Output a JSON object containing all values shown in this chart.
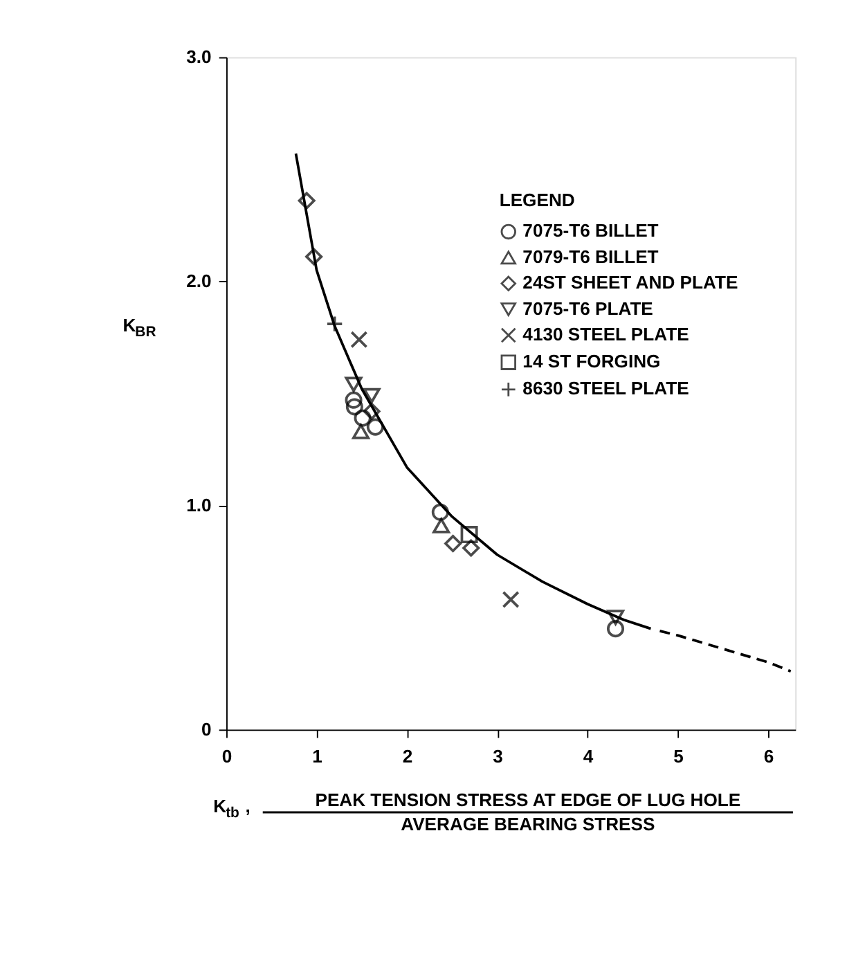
{
  "chart_data": {
    "type": "scatter",
    "xlabel": "K$_{tb}$, PEAK TENSION STRESS AT EDGE OF LUG HOLE",
    "annotations": [
      "AVERAGE BEARING STRESS"
    ],
    "ylabel": "K$_{BR}$",
    "legend_title": "LEGEND",
    "legend": "top right",
    "grid": false,
    "xlim": [
      0,
      6.3
    ],
    "xticks": [
      0,
      1,
      2,
      3,
      4,
      5,
      6
    ],
    "ylim": [
      0,
      3
    ],
    "yticks": [
      0,
      {
        "value": 1,
        "label": "1.0"
      },
      {
        "value": 2,
        "label": "2.0"
      },
      {
        "value": 3,
        "label": "3.0"
      }
    ],
    "series": [
      {
        "name": "7075-T6 BILLET",
        "color": "#000000",
        "marker": "circle",
        "x": [
          1.41,
          1.42,
          1.51,
          1.65,
          2.37,
          4.31
        ],
        "values": [
          1.47,
          1.44,
          1.39,
          1.35,
          0.97,
          0.45
        ]
      },
      {
        "name": "7079-T6 BILLET",
        "color": "#000000",
        "marker": "triangle",
        "x": [
          1.49,
          2.38
        ],
        "values": [
          1.33,
          0.91
        ]
      },
      {
        "name": "24ST SHEET AND PLATE",
        "color": "#000000",
        "marker": "diamond",
        "x": [
          0.89,
          0.97,
          1.61,
          2.51,
          2.71
        ],
        "values": [
          2.36,
          2.11,
          1.42,
          0.83,
          0.81
        ]
      },
      {
        "name": "7075-T6 PLATE",
        "color": "#000000",
        "marker": "triangle-down",
        "x": [
          1.41,
          1.61,
          4.31
        ],
        "values": [
          1.54,
          1.49,
          0.5
        ]
      },
      {
        "name": "4130 STEEL PLATE",
        "color": "#000000",
        "marker": "x",
        "x": [
          1.47,
          3.15
        ],
        "values": [
          1.74,
          0.58
        ]
      },
      {
        "name": "14 ST FORGING",
        "color": "#000000",
        "marker": "square",
        "x": [
          2.69
        ],
        "values": [
          0.87
        ]
      },
      {
        "name": "8630 STEEL PLATE",
        "color": "#000000",
        "marker": "cross",
        "x": [
          1.2
        ],
        "values": [
          1.81
        ]
      },
      {
        "type": "line",
        "color": "#000000",
        "line_style": "solid",
        "x": [
          0.77,
          1.0,
          1.2,
          1.5,
          2.0,
          2.5,
          3.0,
          3.5,
          4.0,
          4.4,
          4.7
        ],
        "values": [
          2.57,
          2.05,
          1.8,
          1.52,
          1.17,
          0.95,
          0.78,
          0.66,
          0.56,
          0.49,
          0.45
        ]
      },
      {
        "type": "line",
        "color": "#000000",
        "line_style": "dashed",
        "x": [
          4.8,
          5.0,
          5.5,
          6.0,
          6.25
        ],
        "values": [
          0.44,
          0.42,
          0.36,
          0.3,
          0.26
        ]
      }
    ]
  }
}
